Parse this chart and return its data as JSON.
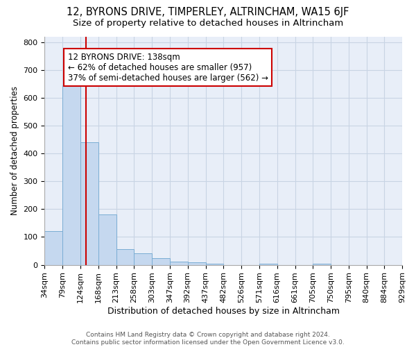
{
  "title": "12, BYRONS DRIVE, TIMPERLEY, ALTRINCHAM, WA15 6JF",
  "subtitle": "Size of property relative to detached houses in Altrincham",
  "xlabel": "Distribution of detached houses by size in Altrincham",
  "ylabel": "Number of detached properties",
  "bin_edges": [
    34,
    79,
    124,
    168,
    213,
    258,
    303,
    347,
    392,
    437,
    482,
    526,
    571,
    616,
    661,
    705,
    750,
    795,
    840,
    884,
    929
  ],
  "bar_heights": [
    122,
    645,
    440,
    180,
    57,
    42,
    25,
    12,
    10,
    5,
    0,
    0,
    5,
    0,
    0,
    5,
    0,
    0,
    0,
    0
  ],
  "bar_color": "#c5d8ef",
  "bar_edgecolor": "#7aadd4",
  "grid_color": "#c8d4e4",
  "bg_color": "#e8eef8",
  "property_size": 138,
  "red_line_color": "#cc0000",
  "annotation_line1": "12 BYRONS DRIVE: 138sqm",
  "annotation_line2": "← 62% of detached houses are smaller (957)",
  "annotation_line3": "37% of semi-detached houses are larger (562) →",
  "annotation_box_color": "#ffffff",
  "annotation_box_edgecolor": "#cc0000",
  "ylim": [
    0,
    820
  ],
  "yticks": [
    0,
    100,
    200,
    300,
    400,
    500,
    600,
    700,
    800
  ],
  "footer_line1": "Contains HM Land Registry data © Crown copyright and database right 2024.",
  "footer_line2": "Contains public sector information licensed under the Open Government Licence v3.0.",
  "title_fontsize": 10.5,
  "subtitle_fontsize": 9.5,
  "xlabel_fontsize": 9,
  "ylabel_fontsize": 8.5,
  "tick_fontsize": 8,
  "annotation_fontsize": 8.5,
  "footer_fontsize": 6.5
}
